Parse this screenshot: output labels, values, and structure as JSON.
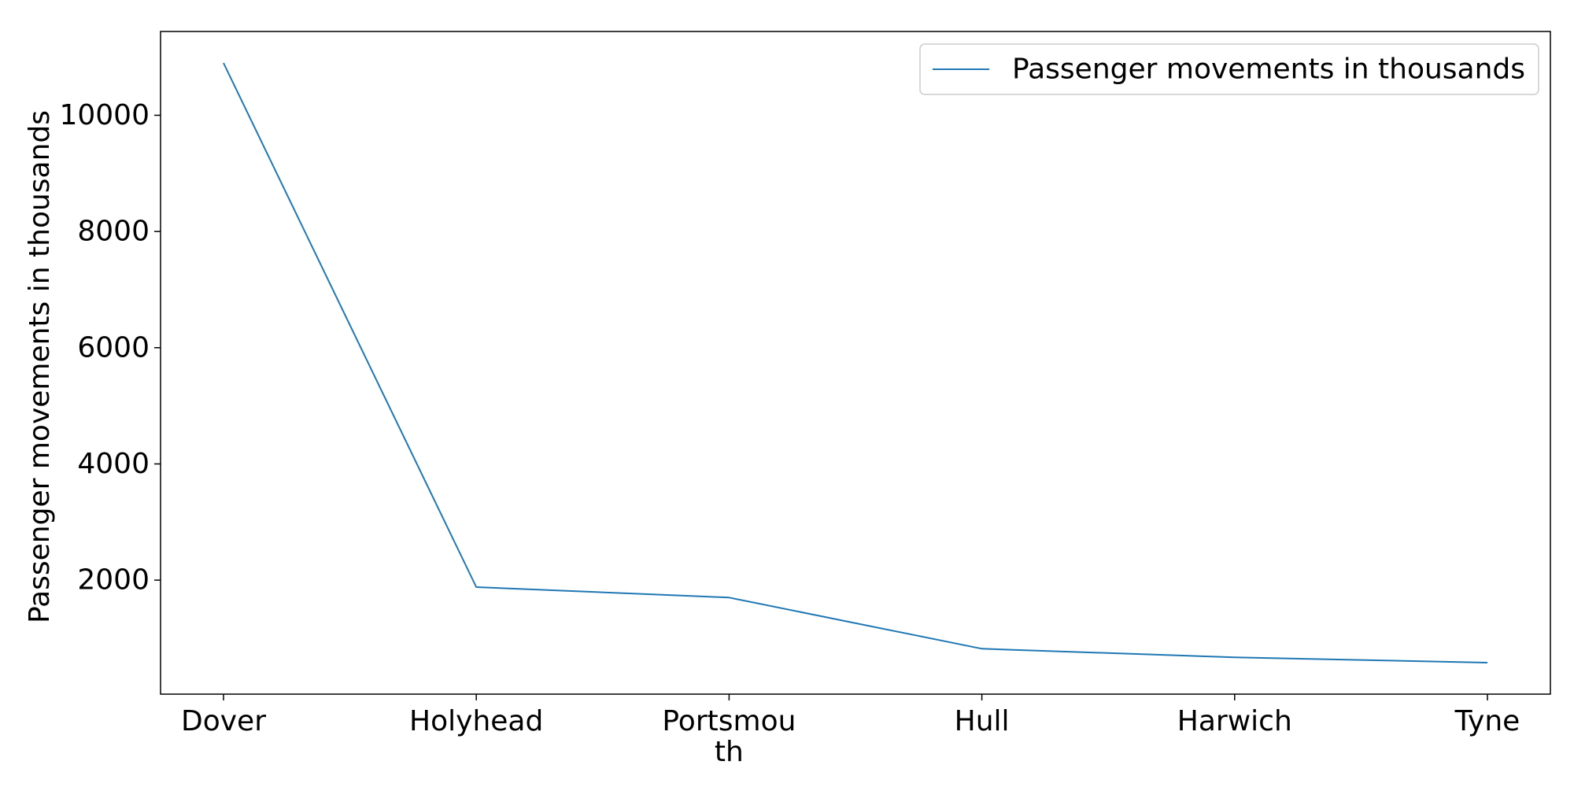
{
  "chart_data": {
    "type": "line",
    "categories": [
      "Dover",
      "Holyhead",
      "Portsmouth",
      "Hull",
      "Harwich",
      "Tyne"
    ],
    "category_tick_labels": [
      [
        "Dover"
      ],
      [
        "Holyhead"
      ],
      [
        "Portsmou",
        "th"
      ],
      [
        "Hull"
      ],
      [
        "Harwich"
      ],
      [
        "Tyne"
      ]
    ],
    "series": [
      {
        "name": "Passenger movements in thousands",
        "values": [
          10900,
          1880,
          1700,
          820,
          670,
          580
        ],
        "color": "#1f77b4"
      }
    ],
    "title": "",
    "xlabel": "",
    "ylabel": "Passenger movements in thousands",
    "ylim": [
      38,
      11442
    ],
    "yticks": [
      2000,
      4000,
      6000,
      8000,
      10000
    ],
    "grid": false,
    "legend_position": "top-right"
  }
}
